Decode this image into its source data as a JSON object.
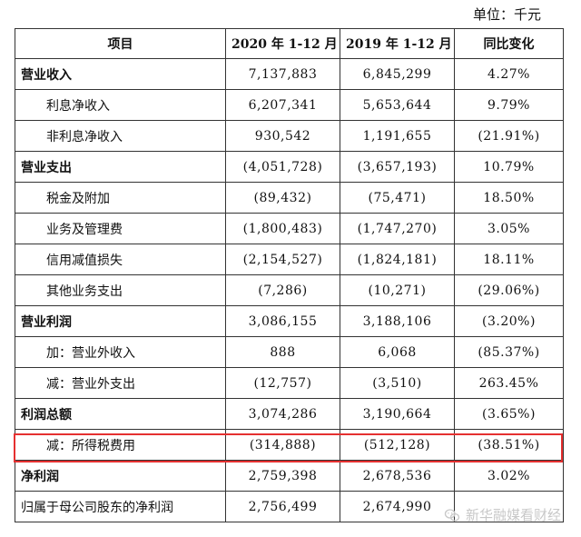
{
  "unit_label": "单位：千元",
  "table": {
    "headers": [
      "项目",
      "2020 年 1-12 月",
      "2019 年 1-12 月",
      "同比变化"
    ],
    "rows": [
      {
        "label": "营业收入",
        "y2020": "7,137,883",
        "y2019": "6,845,299",
        "yoy": "4.27%",
        "style": "bold"
      },
      {
        "label": "利息净收入",
        "y2020": "6,207,341",
        "y2019": "5,653,644",
        "yoy": "9.79%",
        "style": "sub"
      },
      {
        "label": "非利息净收入",
        "y2020": "930,542",
        "y2019": "1,191,655",
        "yoy": "(21.91%)",
        "style": "sub"
      },
      {
        "label": "营业支出",
        "y2020": "(4,051,728)",
        "y2019": "(3,657,193)",
        "yoy": "10.79%",
        "style": "bold"
      },
      {
        "label": "税金及附加",
        "y2020": "(89,432)",
        "y2019": "(75,471)",
        "yoy": "18.50%",
        "style": "sub"
      },
      {
        "label": "业务及管理费",
        "y2020": "(1,800,483)",
        "y2019": "(1,747,270)",
        "yoy": "3.05%",
        "style": "sub"
      },
      {
        "label": "信用减值损失",
        "y2020": "(2,154,527)",
        "y2019": "(1,824,181)",
        "yoy": "18.11%",
        "style": "sub"
      },
      {
        "label": "其他业务支出",
        "y2020": "(7,286)",
        "y2019": "(10,271)",
        "yoy": "(29.06%)",
        "style": "sub"
      },
      {
        "label": "营业利润",
        "y2020": "3,086,155",
        "y2019": "3,188,106",
        "yoy": "(3.20%)",
        "style": "bold"
      },
      {
        "label": "加：营业外收入",
        "y2020": "888",
        "y2019": "6,068",
        "yoy": "(85.37%)",
        "style": "sub"
      },
      {
        "label": "减：营业外支出",
        "y2020": "(12,757)",
        "y2019": "(3,510)",
        "yoy": "263.45%",
        "style": "sub"
      },
      {
        "label": "利润总额",
        "y2020": "3,074,286",
        "y2019": "3,190,664",
        "yoy": "(3.65%)",
        "style": "bold"
      },
      {
        "label": "减：所得税费用",
        "y2020": "(314,888)",
        "y2019": "(512,128)",
        "yoy": "(38.51%)",
        "style": "sub"
      },
      {
        "label": "净利润",
        "y2020": "2,759,398",
        "y2019": "2,678,536",
        "yoy": "3.02%",
        "style": "bold"
      },
      {
        "label": "归属于母公司股东的净利润",
        "y2020": "2,756,499",
        "y2019": "2,674,990",
        "yoy": "",
        "style": "plain"
      }
    ]
  },
  "watermark": {
    "text": "新华融媒看财经",
    "icon": "wechat-icon"
  },
  "highlight_color": "#e53030"
}
